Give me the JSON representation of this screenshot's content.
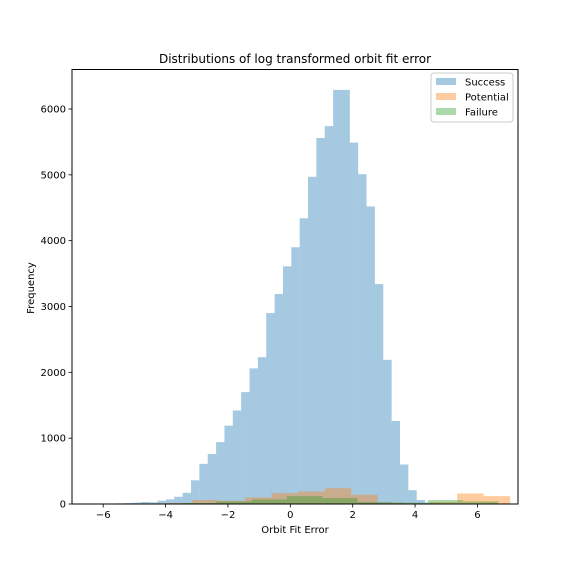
{
  "chart_data": {
    "type": "histogram",
    "title": "Distributions of log transformed orbit fit error",
    "xlabel": "Orbit Fit Error",
    "ylabel": "Frequency",
    "xlim": [
      -7.0,
      7.3
    ],
    "ylim": [
      0,
      6600
    ],
    "xticks": [
      -6,
      -4,
      -2,
      0,
      2,
      4,
      6
    ],
    "xtick_labels": [
      "−6",
      "−4",
      "−2",
      "0",
      "2",
      "4",
      "6"
    ],
    "yticks": [
      0,
      1000,
      2000,
      3000,
      4000,
      5000,
      6000
    ],
    "ytick_labels": [
      "0",
      "1000",
      "2000",
      "3000",
      "4000",
      "5000",
      "6000"
    ],
    "alpha": 0.4,
    "grid": false,
    "legend": "top-right",
    "series": [
      {
        "name": "Success",
        "color": "#1f77b4",
        "bin_start": -6.4,
        "bin_width": 0.268,
        "values": [
          4,
          6,
          8,
          10,
          14,
          20,
          30,
          25,
          50,
          70,
          110,
          170,
          360,
          610,
          760,
          940,
          1190,
          1420,
          1700,
          2060,
          2230,
          2900,
          3190,
          3610,
          3900,
          4340,
          4970,
          5560,
          5740,
          6290,
          6290,
          5490,
          5010,
          4520,
          3340,
          2190,
          1260,
          600,
          210,
          60,
          20,
          10,
          5,
          4
        ]
      },
      {
        "name": "Potential",
        "color": "#ff7f0e",
        "bin_start": -4.0,
        "bin_width": 0.85,
        "values": [
          15,
          60,
          50,
          100,
          165,
          190,
          240,
          140,
          20,
          10,
          30,
          160,
          120
        ]
      },
      {
        "name": "Failure",
        "color": "#2ca02c",
        "bin_start": -3.5,
        "bin_width": 1.13,
        "values": [
          15,
          40,
          70,
          120,
          90,
          30,
          20,
          60,
          40
        ]
      }
    ]
  }
}
